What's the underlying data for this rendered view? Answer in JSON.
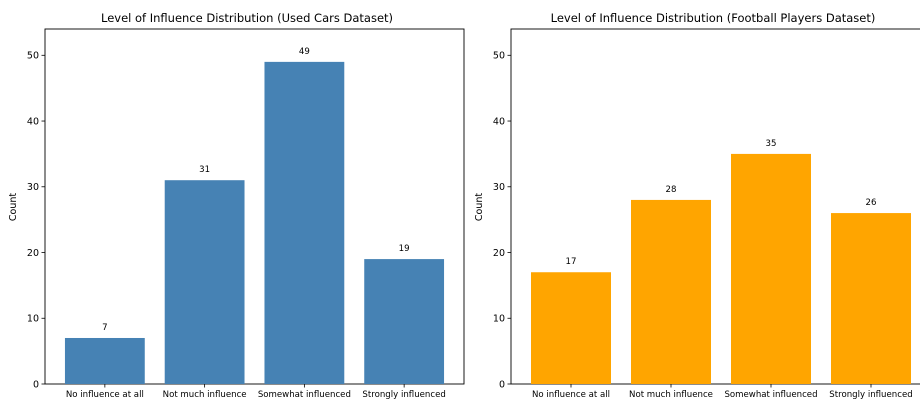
{
  "chart_data": [
    {
      "type": "bar",
      "title": "Level of Influence Distribution (Used Cars Dataset)",
      "xlabel": "",
      "ylabel": "Count",
      "categories": [
        "No influence at all",
        "Not much influence",
        "Somewhat influenced",
        "Strongly influenced"
      ],
      "values": [
        7,
        31,
        49,
        19
      ],
      "ylim": [
        0,
        54
      ],
      "yticks": [
        0,
        10,
        20,
        30,
        40,
        50
      ],
      "bar_color": "#4682B4",
      "grid": false
    },
    {
      "type": "bar",
      "title": "Level of Influence Distribution (Football Players Dataset)",
      "xlabel": "",
      "ylabel": "Count",
      "categories": [
        "No influence at all",
        "Not much influence",
        "Somewhat influenced",
        "Strongly influenced"
      ],
      "values": [
        17,
        28,
        35,
        26
      ],
      "ylim": [
        0,
        54
      ],
      "yticks": [
        0,
        10,
        20,
        30,
        40,
        50
      ],
      "bar_color": "#FFA500",
      "grid": false
    }
  ]
}
